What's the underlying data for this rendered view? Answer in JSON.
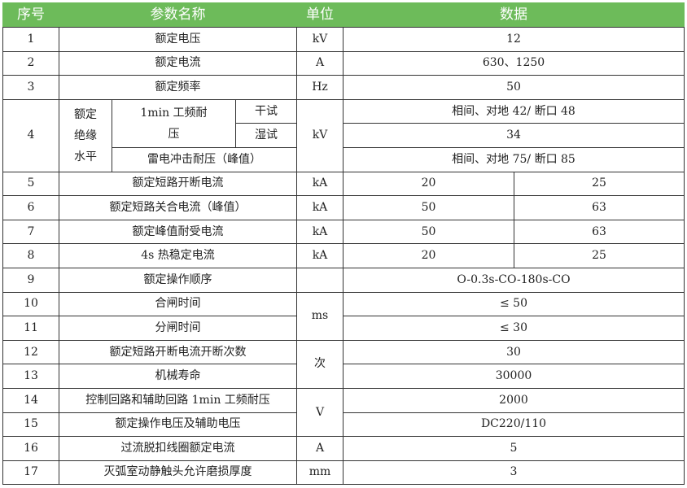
{
  "header_color": "#6dbb5a",
  "headers": {
    "seq": "序号",
    "name": "参数名称",
    "unit": "单位",
    "data": "数据"
  },
  "rows": [
    {
      "seq": "1",
      "name": "额定电压",
      "unit": "kV",
      "data": [
        "12"
      ]
    },
    {
      "seq": "2",
      "name": "额定电流",
      "unit": "A",
      "data": [
        "630、1250"
      ]
    },
    {
      "seq": "3",
      "name": "额定频率",
      "unit": "Hz",
      "data": [
        "50"
      ]
    }
  ],
  "insulation": {
    "seq": "4",
    "group": "额定绝缘水平",
    "power_freq": "1min 工频耐压",
    "dry": "干试",
    "wet": "湿试",
    "lightning": "雷电冲击耐压（峰值）",
    "unit": "kV",
    "dry_value": "相间、对地 42/ 断口 48",
    "wet_value": "34",
    "lightning_value": "相间、对地 75/ 断口 85"
  },
  "rows2": [
    {
      "seq": "5",
      "name": "额定短路开断电流",
      "unit": "kA",
      "data": [
        "20",
        "25"
      ]
    },
    {
      "seq": "6",
      "name": "额定短路关合电流（峰值）",
      "unit": "kA",
      "data": [
        "50",
        "63"
      ]
    },
    {
      "seq": "7",
      "name": "额定峰值耐受电流",
      "unit": "kA",
      "data": [
        "50",
        "63"
      ]
    },
    {
      "seq": "8",
      "name": "4s 热稳定电流",
      "unit": "kA",
      "data": [
        "20",
        "25"
      ]
    },
    {
      "seq": "9",
      "name": "额定操作顺序",
      "unit": "",
      "data": [
        "O-0.3s-CO-180s-CO"
      ]
    },
    {
      "seq": "10",
      "name": "合闸时间",
      "unit": "ms",
      "unit_span": 2,
      "data": [
        "≤ 50"
      ]
    },
    {
      "seq": "11",
      "name": "分闸时间",
      "unit_span": 0,
      "data": [
        "≤ 30"
      ]
    },
    {
      "seq": "12",
      "name": "额定短路开断电流开断次数",
      "unit": "次",
      "unit_span": 2,
      "data": [
        "30"
      ]
    },
    {
      "seq": "13",
      "name": "机械寿命",
      "unit_span": 0,
      "data": [
        "30000"
      ]
    },
    {
      "seq": "14",
      "name": "控制回路和辅助回路 1min 工频耐压",
      "unit": "V",
      "unit_span": 2,
      "data": [
        "2000"
      ]
    },
    {
      "seq": "15",
      "name": "额定操作电压及辅助电压",
      "unit_span": 0,
      "data": [
        "DC220/110"
      ]
    },
    {
      "seq": "16",
      "name": "过流脱扣线圈额定电流",
      "unit": "A",
      "data": [
        "5"
      ]
    },
    {
      "seq": "17",
      "name": "灭弧室动静触头允许磨损厚度",
      "unit": "mm",
      "data": [
        "3"
      ]
    }
  ]
}
